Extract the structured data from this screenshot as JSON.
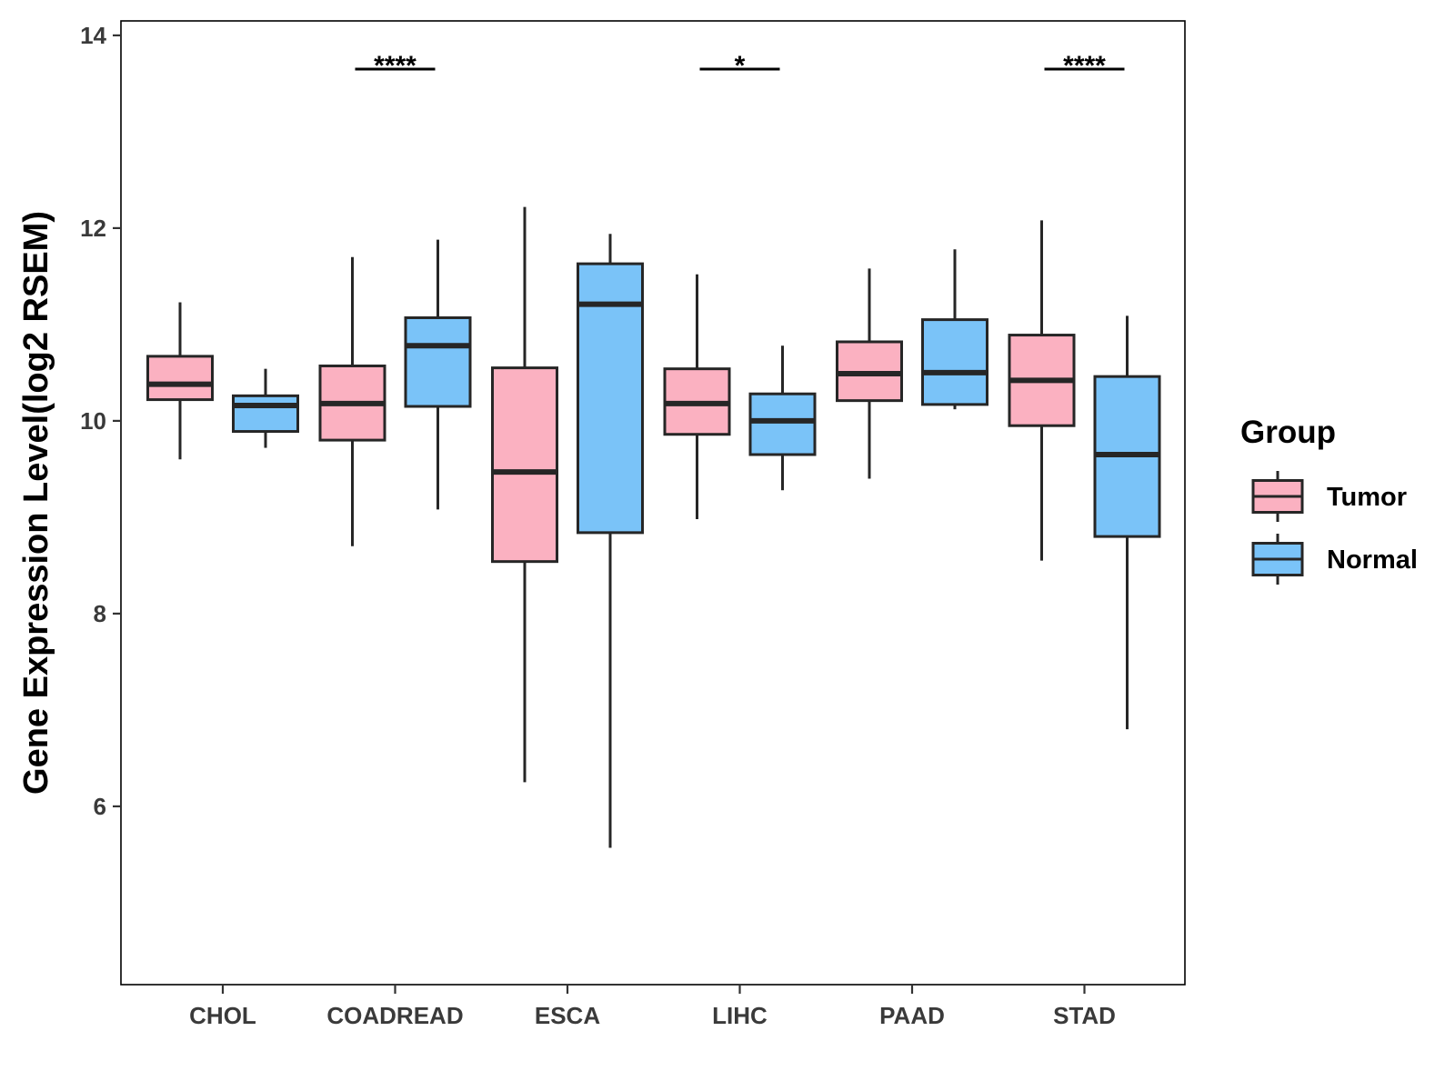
{
  "chart_data": {
    "type": "boxplot",
    "title": "",
    "xlabel": "",
    "ylabel": "Gene Expression Level(log2 RSEM)",
    "ylim": [
      4.15,
      14.15
    ],
    "yticks": [
      6,
      8,
      10,
      12,
      14
    ],
    "grid": false,
    "legend_position": "right",
    "legend_title": "Group",
    "colors": {
      "Tumor": "#FBB1C1",
      "Normal": "#7AC3F8",
      "stroke": "#262626"
    },
    "categories": [
      "CHOL",
      "COADREAD",
      "ESCA",
      "LIHC",
      "PAAD",
      "STAD"
    ],
    "series": [
      {
        "name": "Tumor",
        "boxes": [
          {
            "whisker_low": 9.6,
            "q1": 10.22,
            "median": 10.38,
            "q3": 10.67,
            "whisker_high": 11.23
          },
          {
            "whisker_low": 8.7,
            "q1": 9.8,
            "median": 10.18,
            "q3": 10.57,
            "whisker_high": 11.7
          },
          {
            "whisker_low": 6.25,
            "q1": 8.54,
            "median": 9.47,
            "q3": 10.55,
            "whisker_high": 12.22
          },
          {
            "whisker_low": 8.98,
            "q1": 9.86,
            "median": 10.18,
            "q3": 10.54,
            "whisker_high": 11.52
          },
          {
            "whisker_low": 9.4,
            "q1": 10.21,
            "median": 10.49,
            "q3": 10.82,
            "whisker_high": 11.58
          },
          {
            "whisker_low": 8.55,
            "q1": 9.95,
            "median": 10.42,
            "q3": 10.89,
            "whisker_high": 12.08
          }
        ]
      },
      {
        "name": "Normal",
        "boxes": [
          {
            "whisker_low": 9.72,
            "q1": 9.89,
            "median": 10.16,
            "q3": 10.26,
            "whisker_high": 10.54
          },
          {
            "whisker_low": 9.08,
            "q1": 10.15,
            "median": 10.78,
            "q3": 11.07,
            "whisker_high": 11.88
          },
          {
            "whisker_low": 5.57,
            "q1": 8.84,
            "median": 11.21,
            "q3": 11.63,
            "whisker_high": 11.94
          },
          {
            "whisker_low": 9.28,
            "q1": 9.65,
            "median": 10.0,
            "q3": 10.28,
            "whisker_high": 10.78
          },
          {
            "whisker_low": 10.12,
            "q1": 10.17,
            "median": 10.5,
            "q3": 11.05,
            "whisker_high": 11.78
          },
          {
            "whisker_low": 6.8,
            "q1": 8.8,
            "median": 9.65,
            "q3": 10.46,
            "whisker_high": 11.09
          }
        ]
      }
    ],
    "significance": [
      {
        "category": "COADREAD",
        "label": "****"
      },
      {
        "category": "LIHC",
        "label": "*"
      },
      {
        "category": "STAD",
        "label": "****"
      }
    ],
    "significance_level": 13.65
  }
}
